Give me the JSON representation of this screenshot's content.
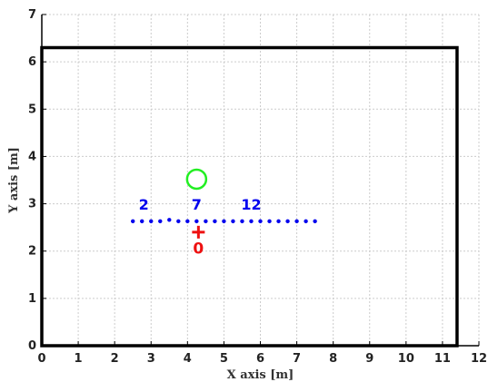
{
  "chart_data": {
    "type": "scatter",
    "xlabel": "X axis [m]",
    "ylabel": "Y axis [m]",
    "xlim": [
      0,
      12
    ],
    "ylim": [
      0,
      7
    ],
    "xticks": [
      0,
      1,
      2,
      3,
      4,
      5,
      6,
      7,
      8,
      9,
      10,
      11,
      12
    ],
    "yticks": [
      0,
      1,
      2,
      3,
      4,
      5,
      6,
      7
    ],
    "grid": true,
    "room": {
      "x": [
        0,
        11.4
      ],
      "y": [
        0,
        6.3
      ],
      "color": "#000000"
    },
    "microphones": {
      "color": "#0000ee",
      "x": [
        2.5,
        2.75,
        3.0,
        3.25,
        3.5,
        3.75,
        4.0,
        4.25,
        4.5,
        4.75,
        5.0,
        5.25,
        5.5,
        5.75,
        6.0,
        6.25,
        6.5,
        6.75,
        7.0,
        7.25,
        7.5
      ],
      "y": [
        2.63,
        2.63,
        2.63,
        2.63,
        2.66,
        2.63,
        2.63,
        2.63,
        2.63,
        2.63,
        2.63,
        2.63,
        2.63,
        2.63,
        2.63,
        2.63,
        2.63,
        2.63,
        2.63,
        2.63,
        2.63
      ],
      "labels": [
        {
          "text": "2",
          "x": 2.8,
          "y": 2.88
        },
        {
          "text": "7",
          "x": 4.25,
          "y": 2.88
        },
        {
          "text": "12",
          "x": 5.75,
          "y": 2.88
        }
      ]
    },
    "sources": [
      {
        "marker": "plus",
        "x": 4.3,
        "y": 2.4,
        "color": "#ee1111",
        "label": "0",
        "label_y": 1.95
      },
      {
        "marker": "circle",
        "x": 4.25,
        "y": 3.52,
        "color": "#22ee22",
        "label": ""
      }
    ]
  }
}
